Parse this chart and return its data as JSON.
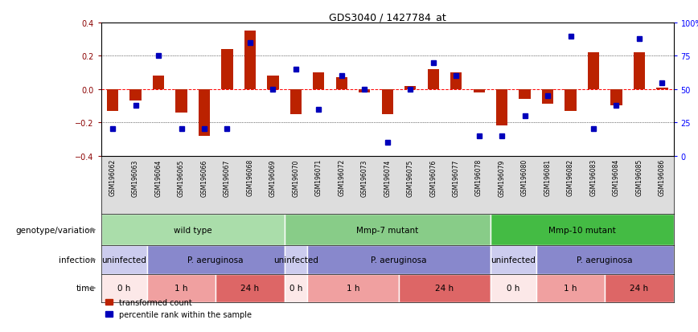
{
  "title": "GDS3040 / 1427784_at",
  "samples": [
    "GSM196062",
    "GSM196063",
    "GSM196064",
    "GSM196065",
    "GSM196066",
    "GSM196067",
    "GSM196068",
    "GSM196069",
    "GSM196070",
    "GSM196071",
    "GSM196072",
    "GSM196073",
    "GSM196074",
    "GSM196075",
    "GSM196076",
    "GSM196077",
    "GSM196078",
    "GSM196079",
    "GSM196080",
    "GSM196081",
    "GSM196082",
    "GSM196083",
    "GSM196084",
    "GSM196085",
    "GSM196086"
  ],
  "red_values": [
    -0.13,
    -0.07,
    0.08,
    -0.14,
    -0.28,
    0.24,
    0.35,
    0.08,
    -0.15,
    0.1,
    0.07,
    -0.02,
    -0.15,
    0.02,
    0.12,
    0.1,
    -0.02,
    -0.22,
    -0.06,
    -0.09,
    -0.13,
    0.22,
    -0.1,
    0.22,
    0.01
  ],
  "blue_values": [
    20,
    38,
    75,
    20,
    20,
    20,
    85,
    50,
    65,
    35,
    60,
    50,
    10,
    50,
    70,
    60,
    15,
    15,
    30,
    45,
    90,
    20,
    38,
    88,
    55
  ],
  "genotype_groups": [
    {
      "label": "wild type",
      "start": 0,
      "end": 8,
      "color": "#aaddaa"
    },
    {
      "label": "Mmp-7 mutant",
      "start": 8,
      "end": 17,
      "color": "#88cc88"
    },
    {
      "label": "Mmp-10 mutant",
      "start": 17,
      "end": 25,
      "color": "#44bb44"
    }
  ],
  "infection_groups": [
    {
      "label": "uninfected",
      "start": 0,
      "end": 2,
      "color": "#ccccee"
    },
    {
      "label": "P. aeruginosa",
      "start": 2,
      "end": 8,
      "color": "#8888cc"
    },
    {
      "label": "uninfected",
      "start": 8,
      "end": 9,
      "color": "#ccccee"
    },
    {
      "label": "P. aeruginosa",
      "start": 9,
      "end": 17,
      "color": "#8888cc"
    },
    {
      "label": "uninfected",
      "start": 17,
      "end": 19,
      "color": "#ccccee"
    },
    {
      "label": "P. aeruginosa",
      "start": 19,
      "end": 25,
      "color": "#8888cc"
    }
  ],
  "time_groups": [
    {
      "label": "0 h",
      "start": 0,
      "end": 2,
      "color": "#fce8e8"
    },
    {
      "label": "1 h",
      "start": 2,
      "end": 5,
      "color": "#f0a0a0"
    },
    {
      "label": "24 h",
      "start": 5,
      "end": 8,
      "color": "#dd6666"
    },
    {
      "label": "0 h",
      "start": 8,
      "end": 9,
      "color": "#fce8e8"
    },
    {
      "label": "1 h",
      "start": 9,
      "end": 13,
      "color": "#f0a0a0"
    },
    {
      "label": "24 h",
      "start": 13,
      "end": 17,
      "color": "#dd6666"
    },
    {
      "label": "0 h",
      "start": 17,
      "end": 19,
      "color": "#fce8e8"
    },
    {
      "label": "1 h",
      "start": 19,
      "end": 22,
      "color": "#f0a0a0"
    },
    {
      "label": "24 h",
      "start": 22,
      "end": 25,
      "color": "#dd6666"
    }
  ],
  "ylim": [
    -0.4,
    0.4
  ],
  "bar_color": "#bb2200",
  "dot_color": "#0000bb",
  "label_row_color": "#dddddd",
  "row_label_fontsize": 7.5,
  "row_content_fontsize": 7.5
}
